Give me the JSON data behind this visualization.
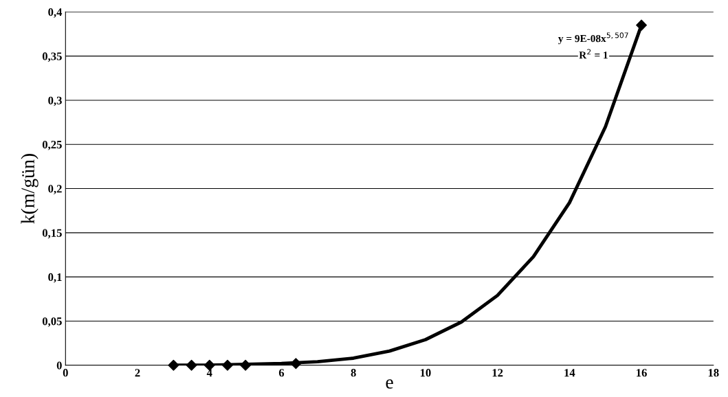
{
  "chart_data": {
    "type": "scatter",
    "xlabel": "e",
    "ylabel": "k(m/gün)",
    "x": [
      3,
      3.5,
      4,
      4.5,
      5,
      6.4,
      16
    ],
    "series": [
      {
        "color": "#000000",
        "marker": "diamond",
        "values": [
          0,
          0,
          0,
          0,
          0,
          0.002,
          0.385
        ]
      },
      {
        "type": "line",
        "color": "#000000",
        "line_style": "solid",
        "x": [
          3,
          4,
          5,
          6,
          7,
          8,
          9,
          10,
          11,
          12,
          13,
          14,
          15,
          16
        ],
        "values": [
          0,
          0,
          0.001,
          0.002,
          0.004,
          0.008,
          0.016,
          0.029,
          0.049,
          0.079,
          0.123,
          0.184,
          0.27,
          0.385
        ]
      }
    ],
    "xlim": [
      0,
      18
    ],
    "xticks": [
      0,
      2,
      4,
      6,
      8,
      10,
      12,
      14,
      16,
      18
    ],
    "ylim": [
      0,
      0.4
    ],
    "yticks": [
      {
        "value": 0,
        "label": "0"
      },
      {
        "value": 0.05,
        "label": "0,05"
      },
      {
        "value": 0.1,
        "label": "0,1"
      },
      {
        "value": 0.15,
        "label": "0,15"
      },
      {
        "value": 0.2,
        "label": "0,2"
      },
      {
        "value": 0.25,
        "label": "0,25"
      },
      {
        "value": 0.3,
        "label": "0,3"
      },
      {
        "value": 0.35,
        "label": "0,35"
      },
      {
        "value": 0.4,
        "label": "0,4"
      }
    ],
    "grid": "y",
    "legend": false,
    "annotations": [
      "y = 9E-08x$^{5,507}$",
      "R$^{2}$ = 1"
    ]
  }
}
